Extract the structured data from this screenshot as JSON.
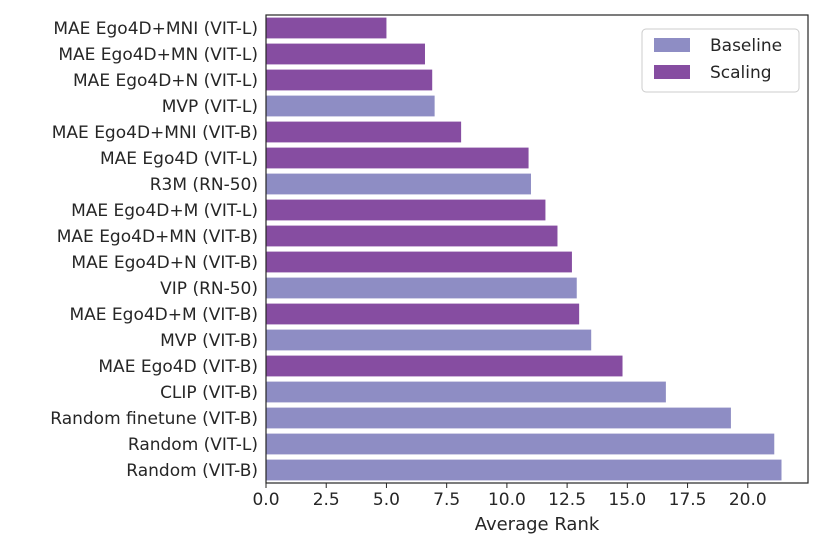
{
  "chart_data": {
    "type": "bar",
    "orientation": "horizontal",
    "title": "",
    "xlabel": "Average Rank",
    "ylabel": "",
    "xlim": [
      0,
      22.5
    ],
    "xticks": [
      "0.0",
      "2.5",
      "5.0",
      "7.5",
      "10.0",
      "12.5",
      "15.0",
      "17.5",
      "20.0"
    ],
    "grid": false,
    "legend_position": "top-right",
    "legend": [
      {
        "name": "Baseline",
        "color": "#8e8dc4"
      },
      {
        "name": "Scaling",
        "color": "#864da1"
      }
    ],
    "categories": [
      "MAE Ego4D+MNI (VIT-L)",
      "MAE Ego4D+MN (VIT-L)",
      "MAE Ego4D+N (VIT-L)",
      "MVP (VIT-L)",
      "MAE Ego4D+MNI (VIT-B)",
      "MAE Ego4D (VIT-L)",
      "R3M (RN-50)",
      "MAE Ego4D+M (VIT-L)",
      "MAE Ego4D+MN (VIT-B)",
      "MAE Ego4D+N (VIT-B)",
      "VIP (RN-50)",
      "MAE Ego4D+M (VIT-B)",
      "MVP (VIT-B)",
      "MAE Ego4D (VIT-B)",
      "CLIP (VIT-B)",
      "Random finetune (VIT-B)",
      "Random (VIT-L)",
      "Random (VIT-B)"
    ],
    "values": [
      5.0,
      6.6,
      6.9,
      7.0,
      8.1,
      10.9,
      11.0,
      11.6,
      12.1,
      12.7,
      12.9,
      13.0,
      13.5,
      14.8,
      16.6,
      19.3,
      21.1,
      21.4
    ],
    "groups": [
      "Scaling",
      "Scaling",
      "Scaling",
      "Baseline",
      "Scaling",
      "Scaling",
      "Baseline",
      "Scaling",
      "Scaling",
      "Scaling",
      "Baseline",
      "Scaling",
      "Baseline",
      "Scaling",
      "Baseline",
      "Baseline",
      "Baseline",
      "Baseline"
    ]
  }
}
